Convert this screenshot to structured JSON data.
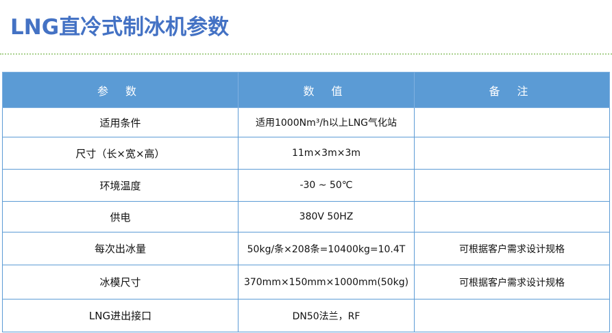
{
  "title": "LNG直冷式制冰机参数",
  "headers": [
    "参 数",
    "数 值",
    "备 注"
  ],
  "rows": [
    {
      "param": "适用条件",
      "value": "适用1000Nm³/h以上LNG气化站",
      "note": ""
    },
    {
      "param": "尺寸（长×宽×高）",
      "value": "11m×3m×3m",
      "note": ""
    },
    {
      "param": "环境温度",
      "value": "-30 ~ 50℃",
      "note": ""
    },
    {
      "param": "供电",
      "value": "380V 50HZ",
      "note": ""
    },
    {
      "param": "每次出冰量",
      "value": "50kg/条×208条=10400kg=10.4T",
      "note": "可根据客户需求设计规格"
    },
    {
      "param": "冰模尺寸",
      "value": "370mm×150mm×1000mm(50kg)",
      "note": "可根据客户需求设计规格"
    },
    {
      "param": "LNG进出接口",
      "value": "DN50法兰，RF",
      "note": ""
    }
  ]
}
